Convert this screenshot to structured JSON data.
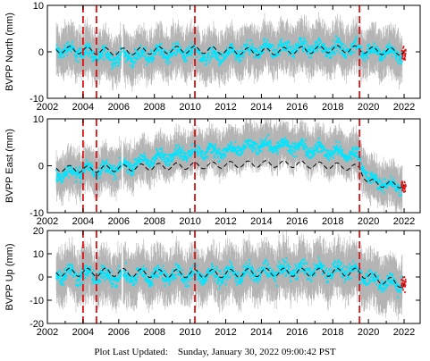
{
  "footer": {
    "label": "Plot Last Updated:",
    "timestamp": "Sunday, January 30, 2022 09:00:42 PST"
  },
  "colors": {
    "error_bars": "#b4b4b4",
    "data_points": "#00e5ff",
    "model_line": "#000000",
    "event_lines": "#dd1111",
    "recent_points": "#dd1111"
  },
  "chart_data": [
    {
      "type": "scatter",
      "title": "",
      "ylabel": "BVPP North (mm)",
      "xlabel": "",
      "xlim": [
        2002,
        2022.9
      ],
      "ylim": [
        -10,
        10
      ],
      "xticks": [
        "2002",
        "2004",
        "2006",
        "2008",
        "2010",
        "2012",
        "2014",
        "2016",
        "2018",
        "2020",
        "2022"
      ],
      "yticks": [
        "-10",
        "0",
        "10"
      ],
      "event_lines_x": [
        2004.0,
        2004.75,
        2010.27,
        2019.5
      ],
      "model_series": {
        "x": [
          2002.5,
          2004.0,
          2004.75,
          2006.0,
          2008.0,
          2010.27,
          2012.0,
          2014.0,
          2016.0,
          2018.0,
          2019.5,
          2020.5,
          2022.0
        ],
        "y": [
          0.5,
          0.3,
          0.2,
          0.0,
          0.3,
          0.5,
          0.2,
          0.0,
          0.3,
          0.6,
          0.5,
          0.2,
          0.0
        ]
      },
      "data_band": {
        "x": [
          2002.5,
          2004.0,
          2005.0,
          2006.0,
          2008.0,
          2010.0,
          2011.0,
          2012.0,
          2014.0,
          2016.0,
          2018.0,
          2019.5,
          2020.5,
          2022.0
        ],
        "y": [
          0.5,
          0.0,
          -0.8,
          -1.2,
          -0.5,
          0.2,
          -1.0,
          -0.8,
          0.5,
          1.0,
          0.8,
          0.5,
          0.0,
          -0.5
        ]
      },
      "scatter_spread": 2.2,
      "error_spread": 5.0
    },
    {
      "type": "scatter",
      "title": "",
      "ylabel": "BVPP East (mm)",
      "xlabel": "",
      "xlim": [
        2002,
        2022.9
      ],
      "ylim": [
        -10,
        10
      ],
      "xticks": [
        "2002",
        "2004",
        "2006",
        "2008",
        "2010",
        "2012",
        "2014",
        "2016",
        "2018",
        "2020",
        "2022"
      ],
      "yticks": [
        "-10",
        "0",
        "10"
      ],
      "event_lines_x": [
        2004.0,
        2004.75,
        2010.27,
        2019.5
      ],
      "model_series": {
        "x": [
          2002.5,
          2004.0,
          2006.0,
          2008.0,
          2010.27,
          2012.0,
          2014.0,
          2016.0,
          2018.0,
          2019.5,
          2020.0,
          2021.0,
          2022.0
        ],
        "y": [
          -0.5,
          -0.8,
          -0.5,
          -0.2,
          0.0,
          0.2,
          0.4,
          0.3,
          0.0,
          -0.5,
          -3.5,
          -4.0,
          -4.0
        ]
      },
      "data_band": {
        "x": [
          2002.5,
          2004.0,
          2006.0,
          2008.0,
          2010.0,
          2012.0,
          2014.0,
          2016.0,
          2018.0,
          2019.5,
          2020.0,
          2021.0,
          2022.0
        ],
        "y": [
          -2.0,
          -1.0,
          -0.5,
          1.5,
          3.0,
          3.0,
          4.5,
          4.0,
          3.0,
          2.0,
          -3.0,
          -4.0,
          -4.5
        ]
      },
      "scatter_spread": 2.0,
      "error_spread": 4.5
    },
    {
      "type": "scatter",
      "title": "",
      "ylabel": "BVPP Up (mm)",
      "xlabel": "",
      "xlim": [
        2002,
        2022.9
      ],
      "ylim": [
        -20,
        20
      ],
      "xticks": [
        "2002",
        "2004",
        "2006",
        "2008",
        "2010",
        "2012",
        "2014",
        "2016",
        "2018",
        "2020",
        "2022"
      ],
      "yticks": [
        "-20",
        "-10",
        "0",
        "10",
        "20"
      ],
      "event_lines_x": [
        2004.0,
        2004.75,
        2010.27,
        2019.5
      ],
      "model_series": {
        "x": [
          2002.5,
          2004.0,
          2006.0,
          2008.0,
          2010.27,
          2012.0,
          2014.0,
          2016.0,
          2018.0,
          2019.5,
          2020.5,
          2022.0
        ],
        "y": [
          2.0,
          2.0,
          2.0,
          1.5,
          1.5,
          1.5,
          2.0,
          2.0,
          2.0,
          2.0,
          -1.0,
          -3.0
        ]
      },
      "data_band": {
        "x": [
          2002.5,
          2004.0,
          2006.0,
          2008.0,
          2010.0,
          2012.0,
          2014.0,
          2016.0,
          2018.0,
          2019.5,
          2020.5,
          2022.0
        ],
        "y": [
          2.0,
          1.0,
          0.0,
          1.0,
          0.5,
          1.0,
          2.0,
          3.0,
          3.0,
          2.0,
          -2.0,
          -3.0
        ]
      },
      "scatter_spread": 5.0,
      "error_spread": 11.0
    }
  ]
}
